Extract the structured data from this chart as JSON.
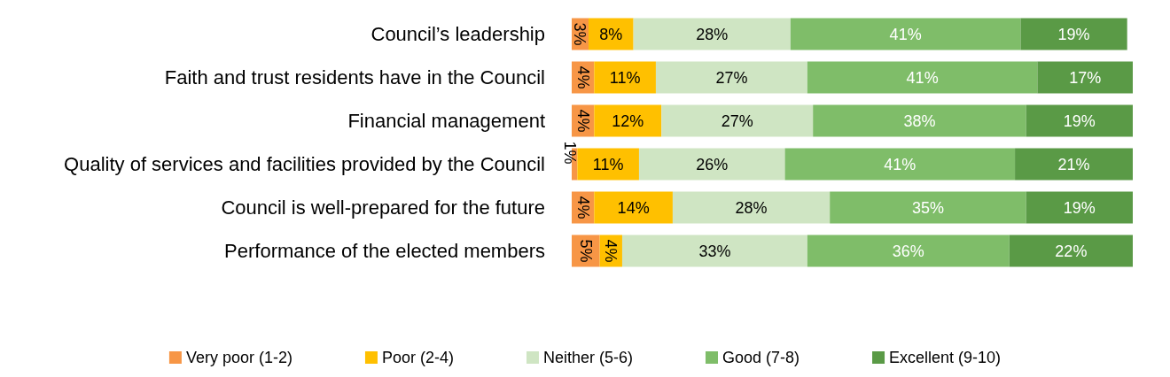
{
  "chart_data": {
    "type": "bar",
    "orientation": "horizontal",
    "stacked": true,
    "tick_labels": "y",
    "xlim": [
      0,
      100
    ],
    "legend": "bottom",
    "categories": [
      "Council’s leadership",
      "Faith and trust residents have in the Council",
      "Financial management",
      "Quality of services and facilities provided by the Council",
      "Council is well-prepared for the future",
      "Performance of the elected members"
    ],
    "series": [
      {
        "name": "Very poor (1-2)",
        "color": "#f79646",
        "values": [
          3,
          4,
          4,
          1,
          4,
          5
        ],
        "value_labels": [
          "3%",
          "4%",
          "4%",
          "1%",
          "4%",
          "5%"
        ]
      },
      {
        "name": "Poor (2-4)",
        "color": "#ffc000",
        "values": [
          8,
          11,
          12,
          11,
          14,
          4
        ],
        "value_labels": [
          "8%",
          "11%",
          "12%",
          "11%",
          "14%",
          "4%"
        ]
      },
      {
        "name": "Neither (5-6)",
        "color": "#cfe5c3",
        "values": [
          28,
          27,
          27,
          26,
          28,
          33
        ],
        "value_labels": [
          "28%",
          "27%",
          "27%",
          "26%",
          "28%",
          "33%"
        ]
      },
      {
        "name": "Good (7-8)",
        "color": "#7fbd69",
        "values": [
          41,
          41,
          38,
          41,
          35,
          36
        ],
        "value_labels": [
          "41%",
          "41%",
          "38%",
          "41%",
          "35%",
          "36%"
        ]
      },
      {
        "name": "Excellent (9-10)",
        "color": "#5a9a46",
        "values": [
          19,
          17,
          19,
          21,
          19,
          22
        ],
        "value_labels": [
          "19%",
          "17%",
          "19%",
          "21%",
          "19%",
          "22%"
        ]
      }
    ]
  }
}
